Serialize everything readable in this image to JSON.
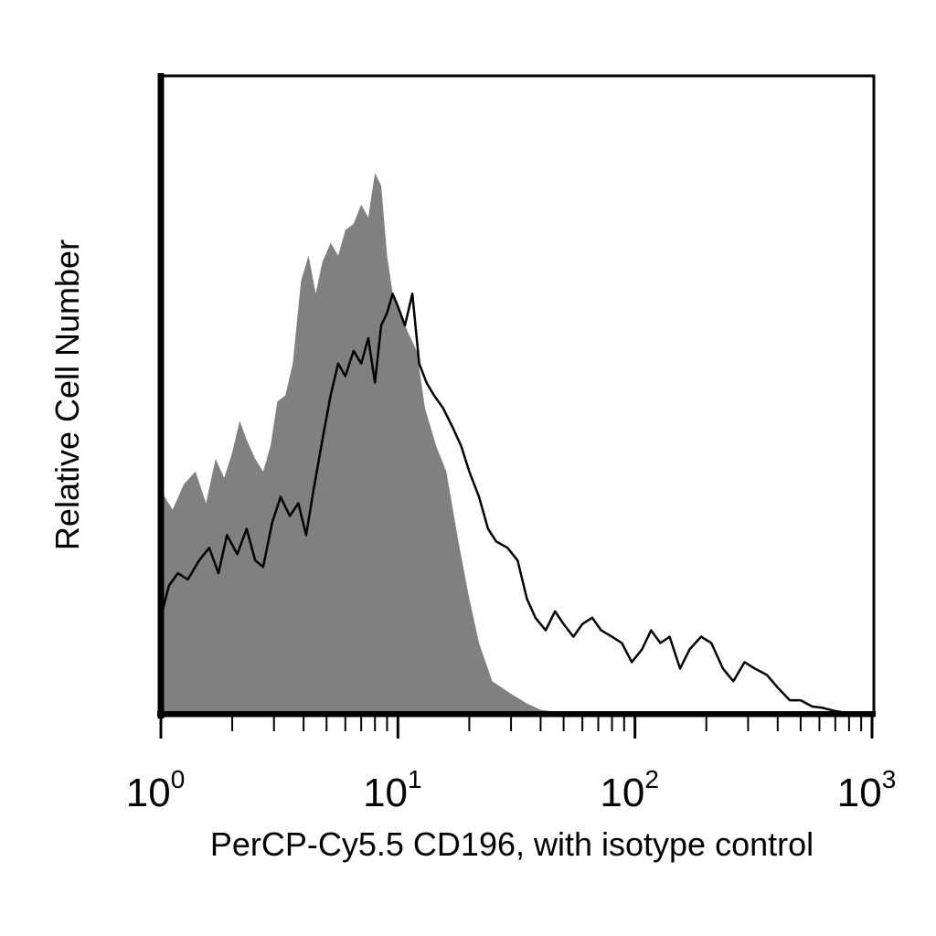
{
  "chart_data": {
    "type": "area",
    "title": "",
    "xlabel": "PerCP-Cy5.5 CD196, with isotype control",
    "ylabel": "Relative Cell Number",
    "x_scale": "log",
    "xlim": [
      1,
      1000
    ],
    "ylim": [
      0,
      1.0
    ],
    "grid": false,
    "x_ticks": [
      {
        "value": 1,
        "base": "10",
        "exp": "0"
      },
      {
        "value": 10,
        "base": "10",
        "exp": "1"
      },
      {
        "value": 100,
        "base": "10",
        "exp": "2"
      },
      {
        "value": 1000,
        "base": "10",
        "exp": "3"
      }
    ],
    "series": [
      {
        "color": "#808080",
        "style": "filled",
        "points": [
          [
            1.0,
            0.35
          ],
          [
            1.12,
            0.32
          ],
          [
            1.25,
            0.36
          ],
          [
            1.4,
            0.38
          ],
          [
            1.55,
            0.33
          ],
          [
            1.7,
            0.4
          ],
          [
            1.85,
            0.37
          ],
          [
            2.0,
            0.41
          ],
          [
            2.15,
            0.46
          ],
          [
            2.3,
            0.43
          ],
          [
            2.5,
            0.4
          ],
          [
            2.7,
            0.38
          ],
          [
            2.9,
            0.42
          ],
          [
            3.1,
            0.49
          ],
          [
            3.35,
            0.5
          ],
          [
            3.6,
            0.55
          ],
          [
            3.9,
            0.68
          ],
          [
            4.2,
            0.72
          ],
          [
            4.5,
            0.66
          ],
          [
            4.8,
            0.71
          ],
          [
            5.2,
            0.74
          ],
          [
            5.6,
            0.72
          ],
          [
            6.0,
            0.76
          ],
          [
            6.5,
            0.77
          ],
          [
            7.0,
            0.8
          ],
          [
            7.5,
            0.78
          ],
          [
            8.0,
            0.85
          ],
          [
            8.5,
            0.83
          ],
          [
            9.0,
            0.72
          ],
          [
            9.5,
            0.66
          ],
          [
            10.0,
            0.64
          ],
          [
            11.0,
            0.6
          ],
          [
            12.0,
            0.57
          ],
          [
            13.0,
            0.48
          ],
          [
            14.5,
            0.42
          ],
          [
            16.0,
            0.38
          ],
          [
            18.0,
            0.27
          ],
          [
            20.0,
            0.18
          ],
          [
            22.0,
            0.11
          ],
          [
            25.0,
            0.05
          ],
          [
            30.0,
            0.03
          ],
          [
            35.0,
            0.015
          ],
          [
            40.0,
            0.005
          ],
          [
            50.0,
            0.0
          ],
          [
            65.0,
            0.0
          ],
          [
            1000.0,
            0.0
          ]
        ]
      },
      {
        "color": "#000000",
        "style": "line",
        "points": [
          [
            1.0,
            0.15
          ],
          [
            1.08,
            0.2
          ],
          [
            1.18,
            0.22
          ],
          [
            1.3,
            0.21
          ],
          [
            1.45,
            0.24
          ],
          [
            1.6,
            0.26
          ],
          [
            1.75,
            0.22
          ],
          [
            1.9,
            0.28
          ],
          [
            2.1,
            0.25
          ],
          [
            2.3,
            0.29
          ],
          [
            2.5,
            0.24
          ],
          [
            2.7,
            0.23
          ],
          [
            2.95,
            0.3
          ],
          [
            3.2,
            0.34
          ],
          [
            3.5,
            0.31
          ],
          [
            3.8,
            0.33
          ],
          [
            4.1,
            0.28
          ],
          [
            4.4,
            0.35
          ],
          [
            4.8,
            0.43
          ],
          [
            5.2,
            0.5
          ],
          [
            5.6,
            0.55
          ],
          [
            6.0,
            0.53
          ],
          [
            6.5,
            0.57
          ],
          [
            7.0,
            0.55
          ],
          [
            7.5,
            0.59
          ],
          [
            8.0,
            0.52
          ],
          [
            8.5,
            0.61
          ],
          [
            9.0,
            0.63
          ],
          [
            9.5,
            0.66
          ],
          [
            10.0,
            0.64
          ],
          [
            10.7,
            0.61
          ],
          [
            11.5,
            0.66
          ],
          [
            12.3,
            0.55
          ],
          [
            13.2,
            0.52
          ],
          [
            14.2,
            0.5
          ],
          [
            15.5,
            0.48
          ],
          [
            17.0,
            0.45
          ],
          [
            18.5,
            0.42
          ],
          [
            20.0,
            0.38
          ],
          [
            22.0,
            0.34
          ],
          [
            24.0,
            0.29
          ],
          [
            26.0,
            0.27
          ],
          [
            29.0,
            0.26
          ],
          [
            32.0,
            0.24
          ],
          [
            35.0,
            0.18
          ],
          [
            38.0,
            0.15
          ],
          [
            42.0,
            0.13
          ],
          [
            46.0,
            0.16
          ],
          [
            50.0,
            0.14
          ],
          [
            55.0,
            0.12
          ],
          [
            60.0,
            0.14
          ],
          [
            66.0,
            0.15
          ],
          [
            72.0,
            0.13
          ],
          [
            80.0,
            0.12
          ],
          [
            88.0,
            0.11
          ],
          [
            97.0,
            0.08
          ],
          [
            107.0,
            0.1
          ],
          [
            117.0,
            0.13
          ],
          [
            128.0,
            0.11
          ],
          [
            140.0,
            0.12
          ],
          [
            155.0,
            0.07
          ],
          [
            170.0,
            0.1
          ],
          [
            190.0,
            0.12
          ],
          [
            210.0,
            0.11
          ],
          [
            235.0,
            0.07
          ],
          [
            260.0,
            0.05
          ],
          [
            290.0,
            0.08
          ],
          [
            320.0,
            0.07
          ],
          [
            360.0,
            0.06
          ],
          [
            400.0,
            0.04
          ],
          [
            450.0,
            0.02
          ],
          [
            500.0,
            0.02
          ],
          [
            560.0,
            0.01
          ],
          [
            620.0,
            0.008
          ],
          [
            700.0,
            0.003
          ],
          [
            780.0,
            0.0
          ]
        ]
      }
    ]
  }
}
